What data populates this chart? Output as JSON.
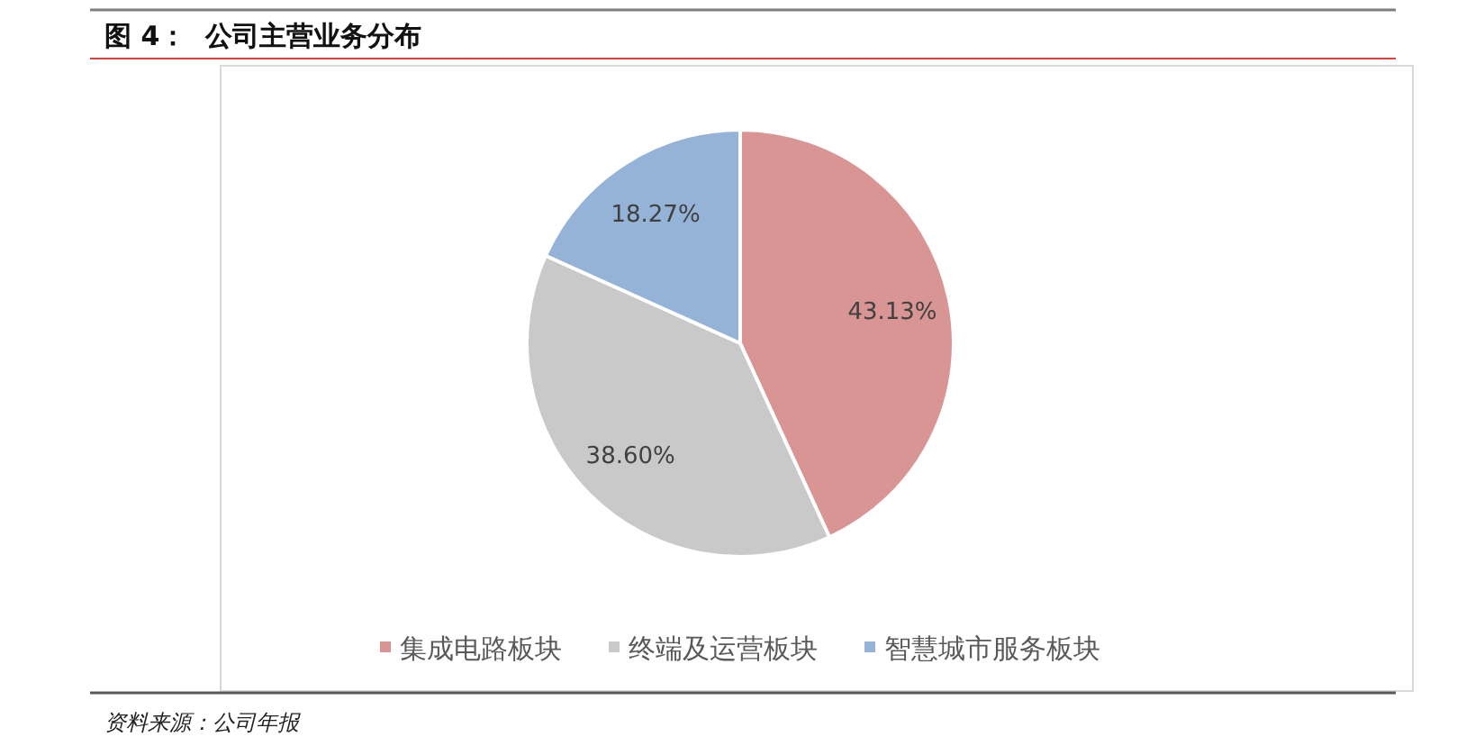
{
  "chart_data": {
    "type": "pie",
    "title": "图 4：  公司主营业务分布",
    "categories": [
      "集成电路板块",
      "终端及运营板块",
      "智慧城市服务板块"
    ],
    "values": [
      43.13,
      38.6,
      18.27
    ],
    "value_labels": [
      "43.13%",
      "38.60%",
      "18.27%"
    ],
    "colors": [
      "#d99594",
      "#c9c9c9",
      "#95b3d7"
    ],
    "legend": "bottom",
    "annotations": [
      "资料来源：公司年报"
    ]
  }
}
